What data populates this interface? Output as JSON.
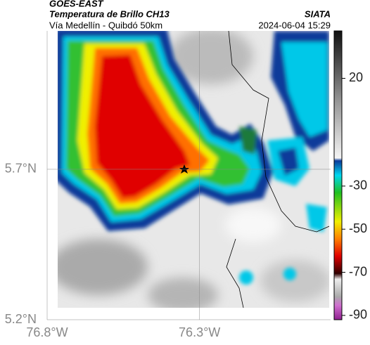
{
  "header": {
    "source": "GOES-EAST",
    "title": "Temperatura de Brillo CH13",
    "subtitle": "Vía Medellín - Quibdó 50km",
    "brand": "SIATA",
    "timestamp": "2024-06-04 15:29"
  },
  "map": {
    "lonlim": [
      -76.8,
      -75.87
    ],
    "latlim": [
      5.2,
      6.16
    ],
    "xticks": [
      {
        "value": -76.8,
        "label": "76.8°W"
      },
      {
        "value": -76.3,
        "label": "76.3°W"
      }
    ],
    "yticks": [
      {
        "value": 5.7,
        "label": "5.7°N"
      },
      {
        "value": 5.2,
        "label": "5.2°N"
      }
    ]
  },
  "colorbar": {
    "lim": [
      -92,
      42
    ],
    "ticks": [
      20,
      -30,
      -50,
      -70,
      -90
    ]
  }
}
